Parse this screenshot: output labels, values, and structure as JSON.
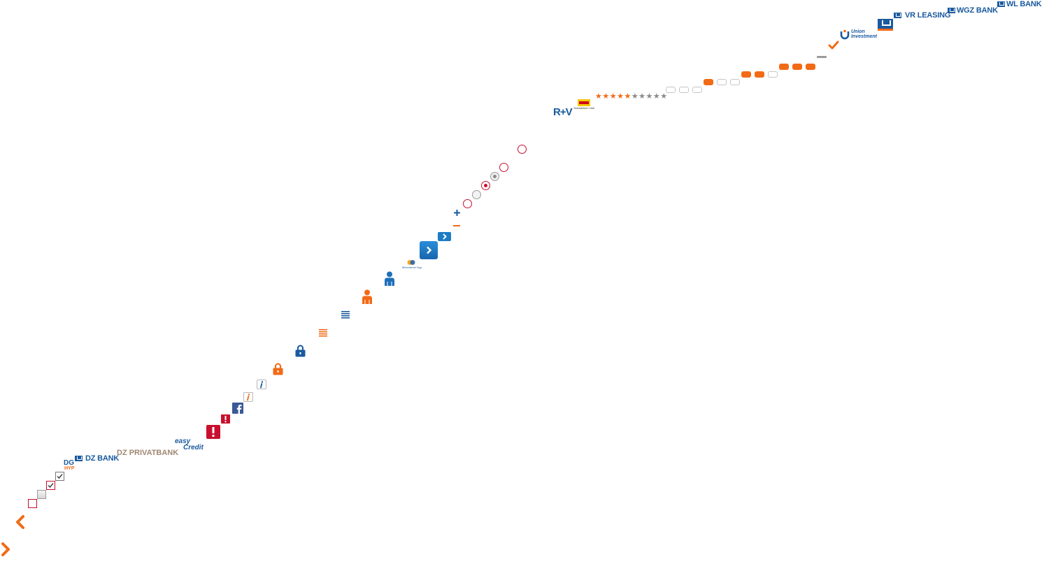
{
  "colors": {
    "orange": "#f26a16",
    "blue": "#1a5a9e",
    "red": "#c8102e",
    "grey": "#9a9a9a",
    "facebook": "#3b5998"
  },
  "logos": {
    "wl_bank": "WL BANK",
    "wgz_bank": "WGZ BANK",
    "vr_leasing": "VR LEASING",
    "union_line1": "Union",
    "union_line2": "Investment",
    "rv": "R+V",
    "schwaebisch_hall": "Schwäbisch Hall",
    "dz_bank": "DZ BANK",
    "dz_privatbank": "DZ PRIVATBANK",
    "easycredit_line1": "easy",
    "easycredit_line2": "Credit",
    "dg_hyp_line1": "DG",
    "dg_hyp_line2": "HYP",
    "muenchener_hyp": "Münchener Hyp"
  },
  "rating": {
    "stars": "★★★★★★★★★★",
    "filled_count": 5,
    "total_count": 10
  },
  "icons": [
    "chevron-right-icon",
    "chevron-left-icon",
    "checkbox-empty-icon",
    "checkbox-disabled-icon",
    "checkbox-checked-icon",
    "warning-icon",
    "facebook-icon",
    "info-icon",
    "lock-icon",
    "list-icon",
    "user-icon",
    "arrow-button-icon",
    "plus-icon",
    "minus-icon",
    "radio-icon",
    "checkmark-icon",
    "dash-icon",
    "pill-icon"
  ]
}
